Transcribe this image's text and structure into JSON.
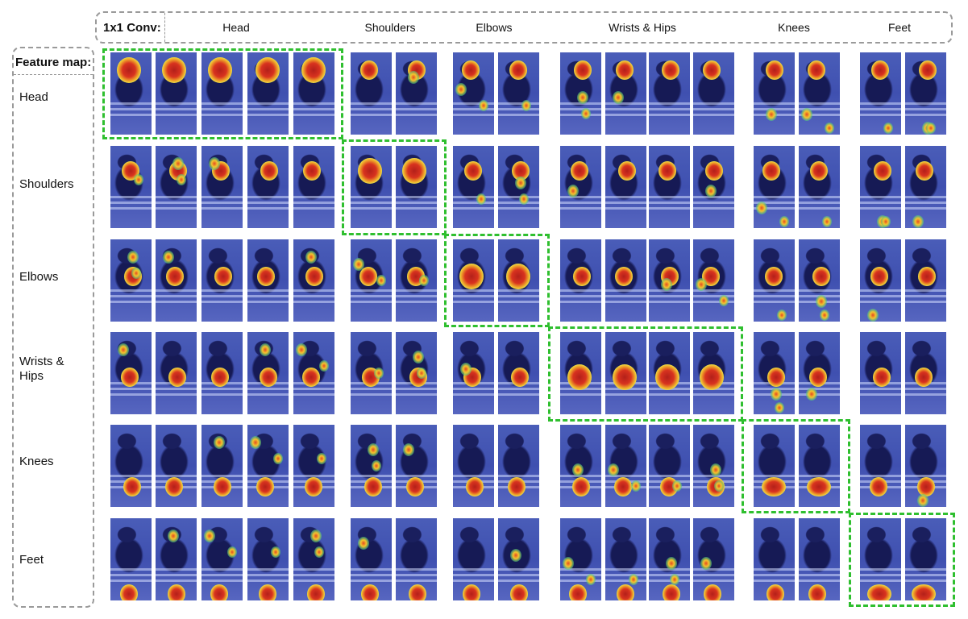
{
  "header": {
    "conv_label": "1x1 Conv:",
    "columns": [
      "Head",
      "Shoulders",
      "Elbows",
      "Wrists & Hips",
      "Knees",
      "Feet"
    ]
  },
  "sidebar": {
    "title": "Feature map:",
    "rows": [
      "Head",
      "Shoulders",
      "Elbows",
      "Wrists &\nHips",
      "Knees",
      "Feet"
    ]
  },
  "grid": {
    "column_group_sizes": [
      5,
      2,
      2,
      4,
      2,
      2
    ],
    "highlight": "diagonal",
    "colors": {
      "highlight": "#2fbf2f",
      "heatmap_hot": "#c0281e",
      "heatmap_warm": "#f2d22e",
      "heatmap_base": "#3f50b0"
    }
  }
}
